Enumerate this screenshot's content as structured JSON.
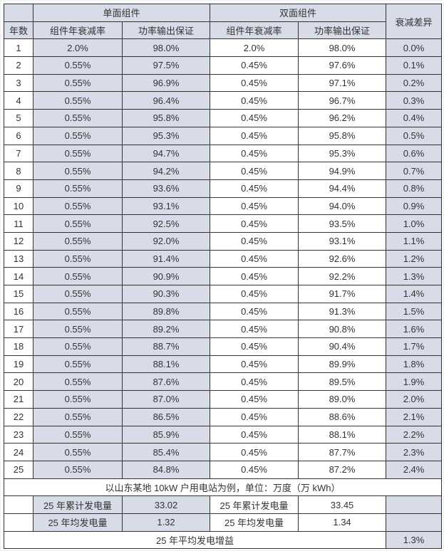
{
  "chart_data": {
    "type": "table",
    "header": {
      "year": "年数",
      "mono_group": "单面组件",
      "bi_group": "双面组件",
      "diff": "衰减差异",
      "degradation": "组件年衰减率",
      "output": "功率输出保证"
    },
    "rows": [
      [
        "1",
        "2.0%",
        "98.0%",
        "2.0%",
        "98.0%",
        "0.0%"
      ],
      [
        "2",
        "0.55%",
        "97.5%",
        "0.45%",
        "97.6%",
        "0.1%"
      ],
      [
        "3",
        "0.55%",
        "96.9%",
        "0.45%",
        "97.1%",
        "0.2%"
      ],
      [
        "4",
        "0.55%",
        "96.4%",
        "0.45%",
        "96.7%",
        "0.3%"
      ],
      [
        "5",
        "0.55%",
        "95.8%",
        "0.45%",
        "96.2%",
        "0.4%"
      ],
      [
        "6",
        "0.55%",
        "95.3%",
        "0.45%",
        "95.8%",
        "0.5%"
      ],
      [
        "7",
        "0.55%",
        "94.7%",
        "0.45%",
        "95.3%",
        "0.6%"
      ],
      [
        "8",
        "0.55%",
        "94.2%",
        "0.45%",
        "94.9%",
        "0.7%"
      ],
      [
        "9",
        "0.55%",
        "93.6%",
        "0.45%",
        "94.4%",
        "0.8%"
      ],
      [
        "10",
        "0.55%",
        "93.1%",
        "0.45%",
        "94.0%",
        "0.9%"
      ],
      [
        "11",
        "0.55%",
        "92.5%",
        "0.45%",
        "93.5%",
        "1.0%"
      ],
      [
        "12",
        "0.55%",
        "92.0%",
        "0.45%",
        "93.1%",
        "1.1%"
      ],
      [
        "13",
        "0.55%",
        "91.4%",
        "0.45%",
        "92.6%",
        "1.2%"
      ],
      [
        "14",
        "0.55%",
        "90.9%",
        "0.45%",
        "92.2%",
        "1.3%"
      ],
      [
        "15",
        "0.55%",
        "90.3%",
        "0.45%",
        "91.7%",
        "1.4%"
      ],
      [
        "16",
        "0.55%",
        "89.8%",
        "0.45%",
        "91.3%",
        "1.5%"
      ],
      [
        "17",
        "0.55%",
        "89.2%",
        "0.45%",
        "90.8%",
        "1.6%"
      ],
      [
        "18",
        "0.55%",
        "88.7%",
        "0.45%",
        "90.4%",
        "1.7%"
      ],
      [
        "19",
        "0.55%",
        "88.1%",
        "0.45%",
        "89.9%",
        "1.8%"
      ],
      [
        "20",
        "0.55%",
        "87.6%",
        "0.45%",
        "89.5%",
        "1.9%"
      ],
      [
        "21",
        "0.55%",
        "87.0%",
        "0.45%",
        "89.0%",
        "2.0%"
      ],
      [
        "22",
        "0.55%",
        "86.5%",
        "0.45%",
        "88.6%",
        "2.1%"
      ],
      [
        "23",
        "0.55%",
        "85.9%",
        "0.45%",
        "88.1%",
        "2.2%"
      ],
      [
        "24",
        "0.55%",
        "85.4%",
        "0.45%",
        "87.7%",
        "2.3%"
      ],
      [
        "25",
        "0.55%",
        "84.8%",
        "0.45%",
        "87.2%",
        "2.4%"
      ]
    ],
    "footer": {
      "note": "以山东某地 10kW 户用电站为例，单位：万度（万 kWh）",
      "cum_label": "25 年累计发电量",
      "mono_cum": "33.02",
      "bi_cum": "33.45",
      "avg_label": "25 年均发电量",
      "mono_avg": "1.32",
      "bi_avg": "1.34",
      "gain_label": "25 年平均发电增益",
      "gain_value": "1.3%"
    }
  },
  "colors": {
    "shade": "#d8dce8",
    "border": "#333333",
    "text": "#333333"
  }
}
